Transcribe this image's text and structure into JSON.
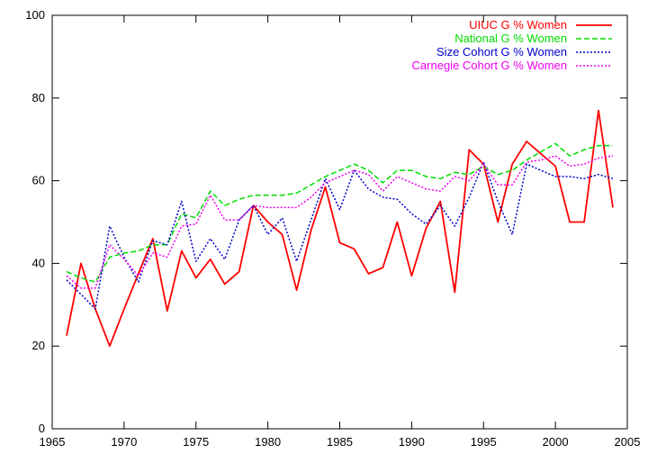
{
  "chart_data": {
    "type": "line",
    "title": "",
    "xlabel": "",
    "ylabel": "",
    "xlim": [
      1965,
      2005
    ],
    "ylim": [
      0,
      100
    ],
    "x_ticks": [
      1965,
      1970,
      1975,
      1980,
      1985,
      1990,
      1995,
      2000,
      2005
    ],
    "y_ticks": [
      0,
      20,
      40,
      60,
      80,
      100
    ],
    "grid": false,
    "legend_position": "top-right",
    "x": [
      1966,
      1967,
      1968,
      1969,
      1970,
      1971,
      1972,
      1973,
      1974,
      1975,
      1976,
      1977,
      1978,
      1979,
      1980,
      1981,
      1982,
      1983,
      1984,
      1985,
      1986,
      1987,
      1988,
      1989,
      1990,
      1991,
      1992,
      1993,
      1994,
      1995,
      1996,
      1997,
      1998,
      1999,
      2000,
      2001,
      2002,
      2003,
      2004
    ],
    "series": [
      {
        "name": "UIUC G % Women",
        "color": "#ff0000",
        "dash": "solid",
        "values": [
          22.5,
          40,
          29,
          20,
          29,
          37.5,
          46,
          28.5,
          43,
          36.5,
          41,
          35,
          38,
          54,
          50,
          47,
          33.5,
          48,
          58.5,
          45,
          43.5,
          37.5,
          39,
          50,
          37,
          48.5,
          55,
          33,
          67.5,
          64,
          50,
          64,
          69.5,
          66.5,
          63.5,
          50,
          50,
          77,
          53.5
        ]
      },
      {
        "name": "National G % Women",
        "color": "#00dd00",
        "dash": "dashed",
        "values": [
          38,
          36.5,
          35.5,
          41.5,
          42.5,
          43,
          44.5,
          44.5,
          52,
          51,
          57.5,
          54,
          55.5,
          56.5,
          56.5,
          56.5,
          57,
          59,
          61,
          62.5,
          64,
          62.5,
          59.5,
          62.5,
          62.5,
          61,
          60.5,
          62,
          61.5,
          63.5,
          61.5,
          62.5,
          65,
          67,
          69,
          66,
          67.5,
          68.5,
          68.5
        ]
      },
      {
        "name": "Size Cohort G % Women",
        "color": "#0000cc",
        "dash": "dotted",
        "values": [
          36,
          32.5,
          29,
          49,
          41.5,
          35.5,
          45.5,
          44.5,
          55,
          40.5,
          46,
          41,
          50.5,
          54,
          47,
          51,
          40.5,
          50.5,
          60.5,
          53,
          62.5,
          58,
          56,
          55.5,
          52,
          49.5,
          54,
          49,
          56,
          64.5,
          55,
          47,
          64,
          62.5,
          61,
          61,
          60.5,
          61.5,
          60.5
        ]
      },
      {
        "name": "Carnegie Cohort G % Women",
        "color": "#ee00ee",
        "dash": "dotted",
        "values": [
          37,
          34,
          34,
          44.5,
          41,
          37,
          42.5,
          41.5,
          49,
          49.5,
          56.5,
          50.5,
          50.5,
          54,
          53.5,
          53.5,
          53.5,
          56,
          59.5,
          61,
          62.5,
          61.5,
          57.5,
          61,
          59.5,
          58,
          57.5,
          61,
          60,
          64,
          59,
          59,
          64.5,
          65,
          66,
          63.5,
          64,
          65.5,
          66
        ]
      }
    ]
  }
}
